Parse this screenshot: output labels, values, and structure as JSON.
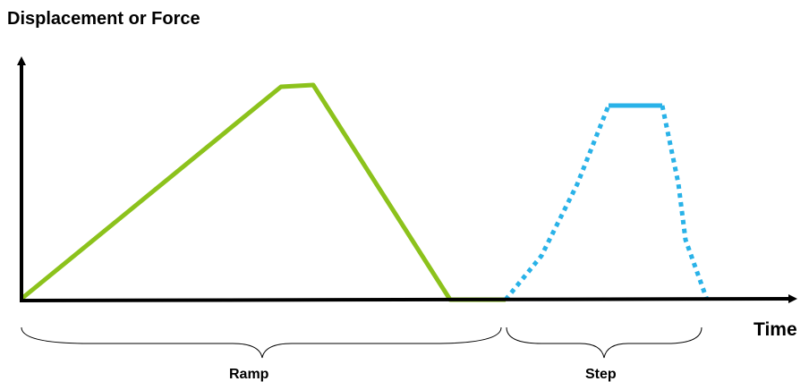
{
  "diagram": {
    "y_axis_label": "Displacement or Force",
    "x_axis_label": "Time",
    "segments": [
      {
        "name": "Ramp",
        "color": "#8cc21c",
        "style": "solid"
      },
      {
        "name": "Step",
        "color": "#29b2e8",
        "style": "dotted",
        "plateau_style": "solid"
      }
    ],
    "axis_color": "#000000"
  }
}
